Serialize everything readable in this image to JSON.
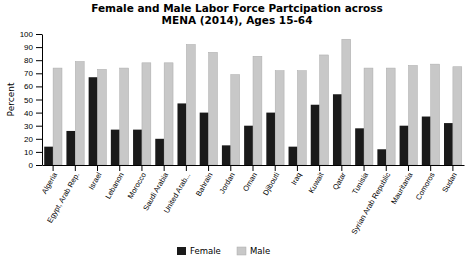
{
  "chart_data": {
    "type": "bar",
    "title": "Female and Male Labor Force Partcipation across\nMENA (2014), Ages 15-64",
    "categories": [
      "Algeria",
      "Egypt, Arab Rep.",
      "Israel",
      "Lebanon",
      "Morocco",
      "Saudi Arabia",
      "United Arab...",
      "Bahrain",
      "Jordan",
      "Oman",
      "Djibouti",
      "Iraq",
      "Kuwait",
      "Qatar",
      "Tunisia",
      "Syrian Arab Republic",
      "Mauritania",
      "Comoros",
      "Sudan"
    ],
    "series": [
      {
        "name": "Female",
        "color": "#1a1a1a",
        "values": [
          14,
          26,
          67,
          27,
          27,
          20,
          47,
          40,
          15,
          30,
          40,
          14,
          46,
          54,
          28,
          12,
          30,
          37,
          32
        ]
      },
      {
        "name": "Male",
        "color": "#c8c8c8",
        "values": [
          74,
          79,
          73,
          74,
          78,
          78,
          92,
          86,
          69,
          83,
          72,
          72,
          84,
          96,
          74,
          74,
          76,
          77,
          75
        ]
      }
    ],
    "ylabel": "Percent",
    "ylim": [
      0,
      100
    ],
    "yticks": [
      0,
      10,
      20,
      30,
      40,
      50,
      60,
      70,
      80,
      90,
      100
    ],
    "grid": false,
    "legend": "bottom"
  }
}
